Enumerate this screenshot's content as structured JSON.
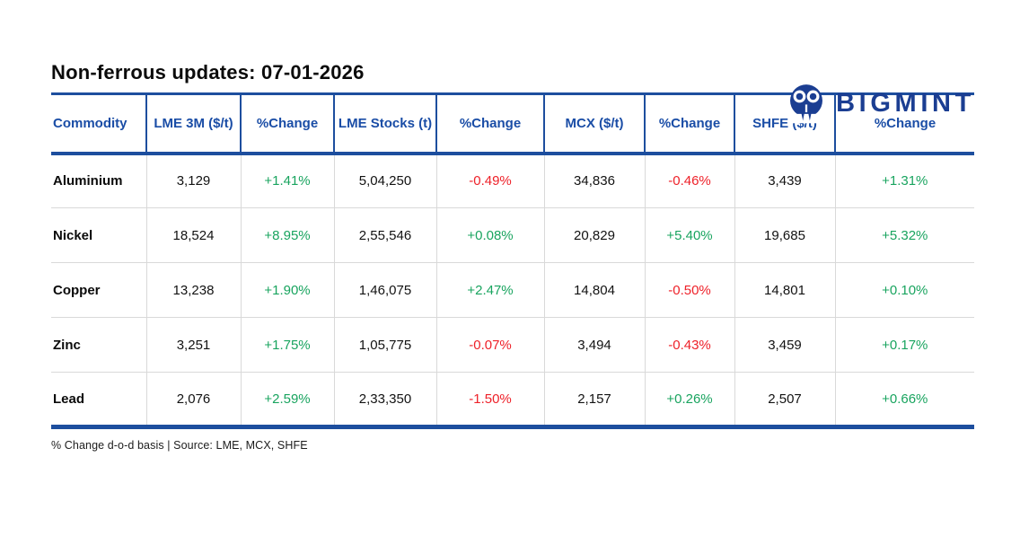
{
  "header": {
    "title": "Non-ferrous updates: 07-01-2026"
  },
  "logo": {
    "text": "BIGMINT",
    "icon": "bigmint-emblem-icon"
  },
  "colors": {
    "accent_blue": "#1d4e9e",
    "header_text": "#1a4da6",
    "logo_navy": "#1b3e92",
    "positive_green": "#19a45f",
    "negative_red": "#ee2129",
    "divider_gray": "#d9d9d9"
  },
  "table": {
    "columns": [
      "Commodity",
      "LME 3M ($/t)",
      "%Change",
      "LME Stocks (t)",
      "%Change",
      "MCX ($/t)",
      "%Change",
      "SHFE ($/t)",
      "%Change"
    ],
    "rows": [
      {
        "commodity": "Aluminium",
        "cells": [
          {
            "value": "3,129"
          },
          {
            "value": "+1.41%",
            "trend": "up"
          },
          {
            "value": "5,04,250"
          },
          {
            "value": "-0.49%",
            "trend": "down"
          },
          {
            "value": "34,836"
          },
          {
            "value": "-0.46%",
            "trend": "down"
          },
          {
            "value": "3,439"
          },
          {
            "value": "+1.31%",
            "trend": "up"
          }
        ]
      },
      {
        "commodity": "Nickel",
        "cells": [
          {
            "value": "18,524"
          },
          {
            "value": "+8.95%",
            "trend": "up"
          },
          {
            "value": "2,55,546"
          },
          {
            "value": "+0.08%",
            "trend": "up"
          },
          {
            "value": "20,829"
          },
          {
            "value": "+5.40%",
            "trend": "up"
          },
          {
            "value": "19,685"
          },
          {
            "value": "+5.32%",
            "trend": "up"
          }
        ]
      },
      {
        "commodity": "Copper",
        "cells": [
          {
            "value": "13,238"
          },
          {
            "value": "+1.90%",
            "trend": "up"
          },
          {
            "value": "1,46,075"
          },
          {
            "value": "+2.47%",
            "trend": "up"
          },
          {
            "value": "14,804"
          },
          {
            "value": "-0.50%",
            "trend": "down"
          },
          {
            "value": "14,801"
          },
          {
            "value": "+0.10%",
            "trend": "up"
          }
        ]
      },
      {
        "commodity": "Zinc",
        "cells": [
          {
            "value": "3,251"
          },
          {
            "value": "+1.75%",
            "trend": "up"
          },
          {
            "value": "1,05,775"
          },
          {
            "value": "-0.07%",
            "trend": "down"
          },
          {
            "value": "3,494"
          },
          {
            "value": "-0.43%",
            "trend": "down"
          },
          {
            "value": "3,459"
          },
          {
            "value": "+0.17%",
            "trend": "up"
          }
        ]
      },
      {
        "commodity": "Lead",
        "cells": [
          {
            "value": "2,076"
          },
          {
            "value": "+2.59%",
            "trend": "up"
          },
          {
            "value": "2,33,350"
          },
          {
            "value": "-1.50%",
            "trend": "down"
          },
          {
            "value": "2,157"
          },
          {
            "value": "+0.26%",
            "trend": "up"
          },
          {
            "value": "2,507"
          },
          {
            "value": "+0.66%",
            "trend": "up"
          }
        ]
      }
    ]
  },
  "footer": {
    "note": "% Change d-o-d basis | Source: LME, MCX, SHFE"
  },
  "chart_data": {
    "type": "table",
    "title": "Non-ferrous updates: 07-01-2026",
    "columns": [
      "Commodity",
      "LME 3M ($/t)",
      "%Change",
      "LME Stocks (t)",
      "%Change",
      "MCX ($/t)",
      "%Change",
      "SHFE ($/t)",
      "%Change"
    ],
    "rows": [
      [
        "Aluminium",
        "3,129",
        "+1.41%",
        "5,04,250",
        "-0.49%",
        "34,836",
        "-0.46%",
        "3,439",
        "+1.31%"
      ],
      [
        "Nickel",
        "18,524",
        "+8.95%",
        "2,55,546",
        "+0.08%",
        "20,829",
        "+5.40%",
        "19,685",
        "+5.32%"
      ],
      [
        "Copper",
        "13,238",
        "+1.90%",
        "1,46,075",
        "+2.47%",
        "14,804",
        "-0.50%",
        "14,801",
        "+0.10%"
      ],
      [
        "Zinc",
        "3,251",
        "+1.75%",
        "1,05,775",
        "-0.07%",
        "3,494",
        "-0.43%",
        "3,459",
        "+0.17%"
      ],
      [
        "Lead",
        "2,076",
        "+2.59%",
        "2,33,350",
        "-1.50%",
        "2,157",
        "+0.26%",
        "2,507",
        "+0.66%"
      ]
    ],
    "cell_color_rule": "percent change cells: green #19a45f if positive, red #ee2129 if negative",
    "notes": "% Change d-o-d basis | Source: LME, MCX, SHFE"
  }
}
